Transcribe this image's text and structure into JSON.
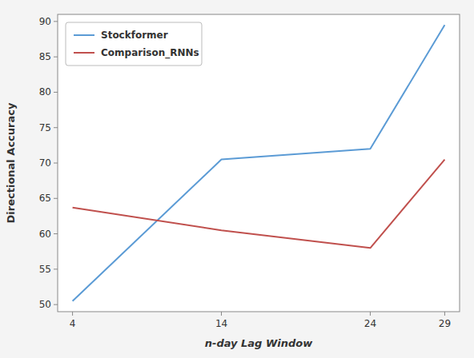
{
  "chart_data": {
    "type": "line",
    "x": [
      4,
      14,
      24,
      29
    ],
    "series": [
      {
        "name": "Stockformer",
        "color": "#5b9bd5",
        "values": [
          50.5,
          70.5,
          72.0,
          89.5
        ]
      },
      {
        "name": "Comparison_RNNs",
        "color": "#c0504d",
        "values": [
          63.7,
          60.5,
          58.0,
          70.5
        ]
      }
    ],
    "xlabel": "n-day Lag Window",
    "ylabel": "Directional Accuracy",
    "xlim": [
      3,
      30
    ],
    "ylim": [
      49,
      91
    ],
    "xticks": [
      4,
      14,
      24,
      29
    ],
    "yticks": [
      50,
      55,
      60,
      65,
      70,
      75,
      80,
      85,
      90
    ],
    "grid": false,
    "legend": "upper left"
  }
}
